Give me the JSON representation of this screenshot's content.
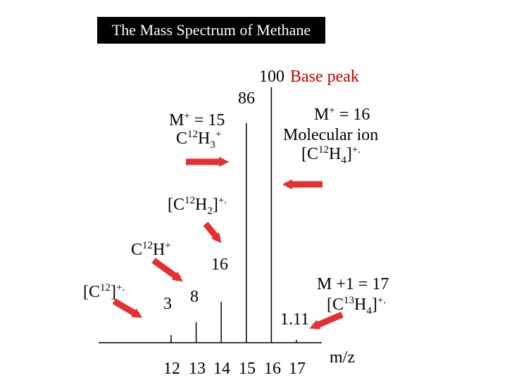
{
  "title": "The Mass Spectrum of Methane",
  "colors": {
    "arrow": "#e63030",
    "title_bg": "#000000",
    "title_fg": "#ffffff",
    "accent_text": "#cc0000"
  },
  "chart_data": {
    "type": "bar",
    "title": "The Mass Spectrum of Methane",
    "xlabel": "m/z",
    "ylabel": "",
    "categories": [
      "12",
      "13",
      "14",
      "15",
      "16",
      "17"
    ],
    "values": [
      3,
      8,
      16,
      86,
      100,
      1.11
    ],
    "value_labels": [
      "3",
      "8",
      "16",
      "86",
      "100",
      "1.11"
    ],
    "ylim": [
      0,
      100
    ],
    "grid": false,
    "legend": "none"
  },
  "annotations": {
    "base_peak": "Base peak",
    "m15": {
      "line1": "M",
      "line1_sup": "+",
      "line1_rest": " = 15",
      "line2": "C",
      "line2_sup": "12",
      "line2_mid": "H",
      "line2_sub": "3",
      "line2_sup2": "+"
    },
    "m16": {
      "line1": "M",
      "line1_sup": "+",
      "line1_rest": " = 16",
      "line2": "Molecular ion",
      "line3_pre": "[C",
      "line3_sup": "12",
      "line3_mid": "H",
      "line3_sub": "4",
      "line3_post": "]",
      "line3_sup2": "+."
    },
    "ch2": {
      "pre": "[C",
      "sup": "12",
      "mid": "H",
      "sub": "2",
      "post": "]",
      "sup2": "+."
    },
    "ch": {
      "pre": "C",
      "sup": "12",
      "mid": "H",
      "sup2": "+"
    },
    "c": {
      "pre": "[C",
      "sup": "12",
      "post": "]",
      "sup2": "+."
    },
    "m17": {
      "line1": "M +1 = 17",
      "line2_pre": "[C",
      "line2_sup": "13",
      "line2_mid": "H",
      "line2_sub": "4",
      "line2_post": "]",
      "line2_sup2": "+."
    }
  }
}
